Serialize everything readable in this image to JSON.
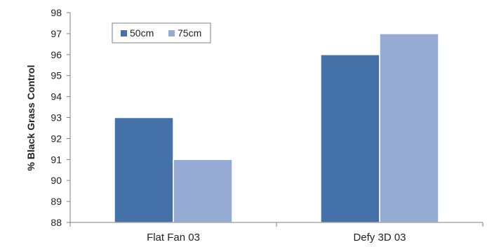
{
  "chart_data": {
    "type": "bar",
    "categories": [
      "Flat Fan 03",
      "Defy 3D 03"
    ],
    "series": [
      {
        "name": "50cm",
        "values": [
          93,
          96
        ],
        "color": "#4472A8"
      },
      {
        "name": "75cm",
        "values": [
          91,
          97
        ],
        "color": "#95ABD3"
      }
    ],
    "ylabel": "% Black Grass Control",
    "ylim": [
      88,
      98
    ],
    "yticks": [
      "88",
      "89",
      "90",
      "91",
      "92",
      "93",
      "94",
      "95",
      "96",
      "97",
      "98"
    ],
    "grid": false,
    "legend": "top-left"
  }
}
